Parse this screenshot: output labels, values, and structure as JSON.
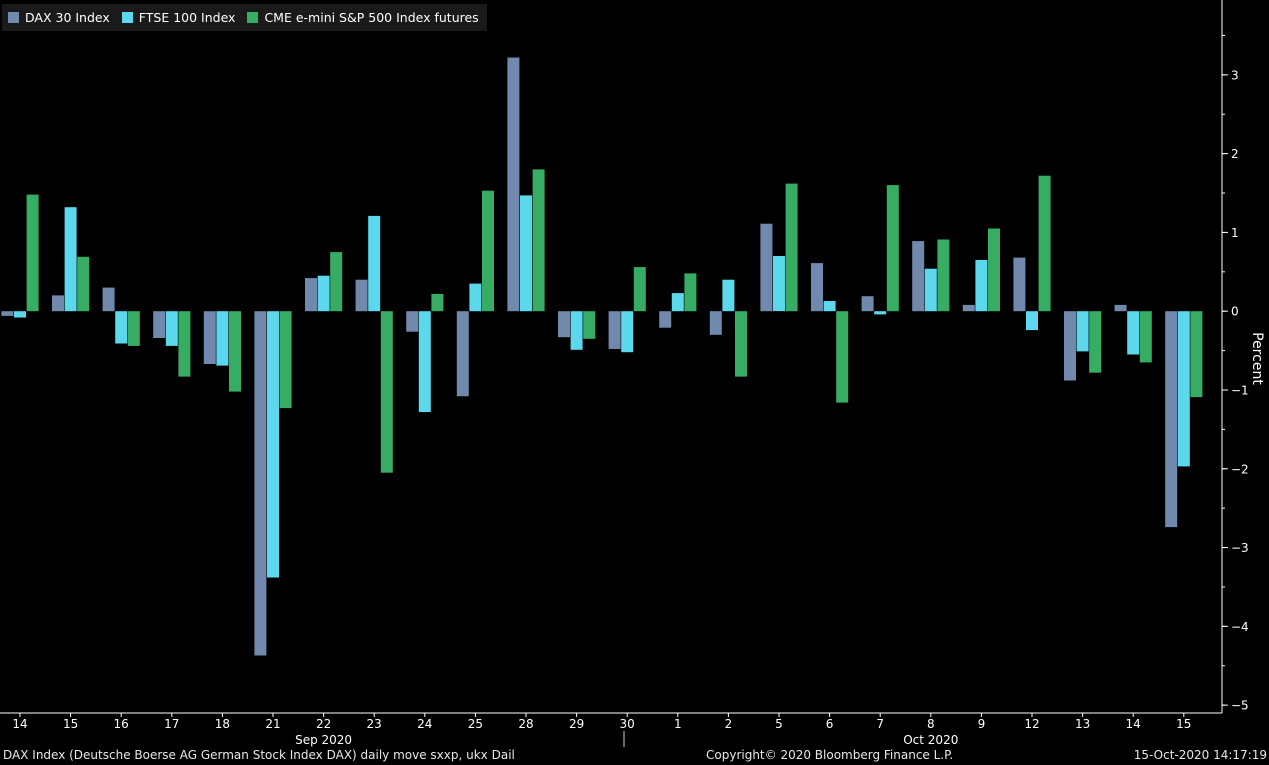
{
  "chart_data": {
    "type": "bar",
    "categories": [
      "14",
      "15",
      "16",
      "17",
      "18",
      "21",
      "22",
      "23",
      "24",
      "25",
      "28",
      "29",
      "30",
      "1",
      "2",
      "5",
      "6",
      "7",
      "8",
      "9",
      "12",
      "13",
      "14",
      "15"
    ],
    "month_labels": [
      {
        "label": "Sep 2020",
        "at": 6
      },
      {
        "label": "Oct 2020",
        "at": 18
      }
    ],
    "series": [
      {
        "name": "DAX 30 Index",
        "color": "#7189ad",
        "values": [
          -0.06,
          0.2,
          0.3,
          -0.34,
          -0.67,
          -4.37,
          0.42,
          0.4,
          -0.26,
          -1.08,
          3.22,
          -0.33,
          -0.48,
          -0.21,
          -0.3,
          1.11,
          0.61,
          0.19,
          0.89,
          0.08,
          0.68,
          -0.88,
          0.08,
          -2.74
        ]
      },
      {
        "name": "FTSE 100 Index",
        "color": "#5cd8ec",
        "values": [
          -0.08,
          1.32,
          -0.41,
          -0.44,
          -0.69,
          -3.38,
          0.45,
          1.21,
          -1.28,
          0.35,
          1.47,
          -0.49,
          -0.52,
          0.23,
          0.4,
          0.7,
          0.13,
          -0.04,
          0.54,
          0.65,
          -0.24,
          -0.51,
          -0.55,
          -1.97
        ]
      },
      {
        "name": "CME e-mini S&P 500 Index futures",
        "color": "#37ad63",
        "values": [
          1.48,
          0.69,
          -0.44,
          -0.83,
          -1.02,
          -1.23,
          0.75,
          -2.05,
          0.22,
          1.53,
          1.8,
          -0.35,
          0.56,
          0.48,
          -0.83,
          1.62,
          -1.16,
          1.6,
          0.91,
          1.05,
          1.72,
          -0.78,
          -0.65,
          -1.09
        ]
      }
    ],
    "ylabel": "Percent",
    "ylim": [
      -5.1,
      3.95
    ],
    "yticks": [
      3,
      2,
      1,
      0,
      -1,
      -2,
      -3,
      -4,
      -5
    ],
    "grid": false,
    "legend_position": "top-left"
  },
  "footer": {
    "left": "DAX Index (Deutsche Boerse AG German Stock Index DAX) daily move sxxp, ukx  Dail",
    "center": "Copyright© 2020 Bloomberg Finance L.P.",
    "right": "15-Oct-2020 14:17:19"
  },
  "colors": {
    "background": "#000000",
    "axis": "#ffffff",
    "legend_background": "#1a1a1a"
  }
}
